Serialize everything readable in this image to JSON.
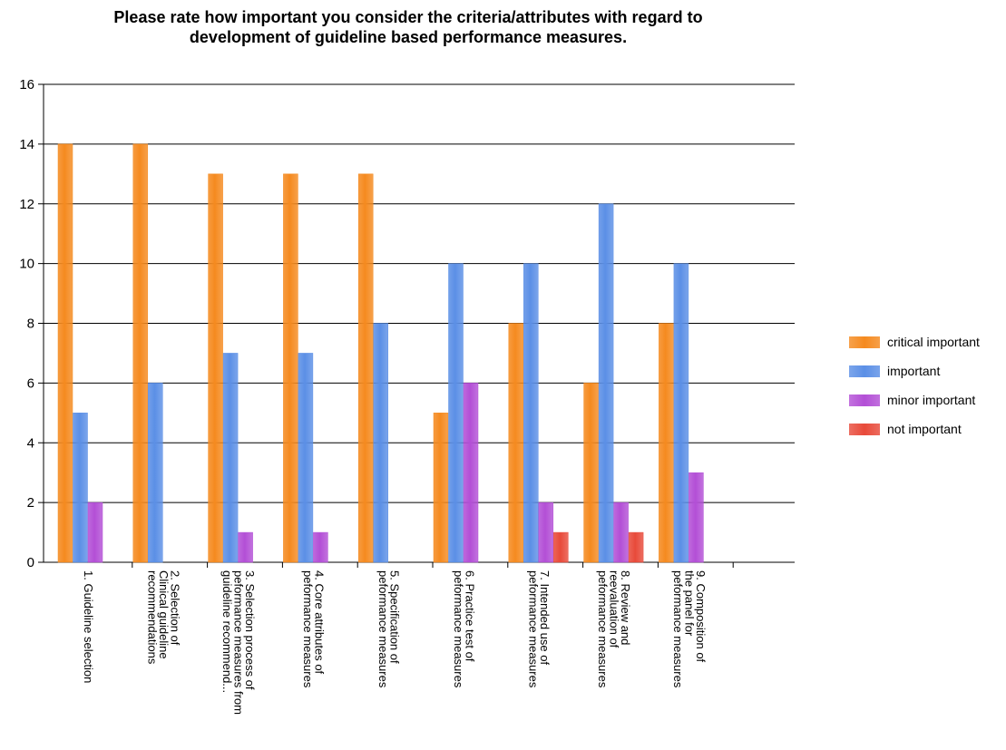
{
  "chart_data": {
    "type": "bar",
    "title_lines": [
      "Please rate how important you consider the criteria/attributes with regard to",
      "development of guideline based performance measures."
    ],
    "categories": [
      [
        "1. Guideline selection"
      ],
      [
        "2. Selection of",
        "Clinical guideline",
        "recommendations"
      ],
      [
        "3. Selection process of",
        "peformance measures from",
        "guideline recommend..."
      ],
      [
        "4. Core attributes of",
        "peformance measures"
      ],
      [
        "5. Specification of",
        "peformance measures"
      ],
      [
        "6. Practice test of",
        "peformance measures"
      ],
      [
        "7. Intended use of",
        "peformance measures"
      ],
      [
        "8. Review and",
        "reevaluation of",
        "peformance measures"
      ],
      [
        "9. Composition of",
        "the panel for",
        "peformance measures"
      ]
    ],
    "series": [
      {
        "name": "critical important",
        "color": "#f58a1f",
        "values": [
          14,
          14,
          13,
          13,
          13,
          5,
          8,
          6,
          8
        ]
      },
      {
        "name": "important",
        "color": "#5b8fe6",
        "values": [
          5,
          6,
          7,
          7,
          8,
          10,
          10,
          12,
          10
        ]
      },
      {
        "name": "minor important",
        "color": "#b34fd6",
        "values": [
          2,
          0,
          1,
          1,
          0,
          6,
          2,
          2,
          3
        ]
      },
      {
        "name": "not important",
        "color": "#e84a3a",
        "values": [
          0,
          0,
          0,
          0,
          0,
          0,
          1,
          1,
          0
        ]
      }
    ],
    "ylim": [
      0,
      16
    ],
    "yticks": [
      0,
      2,
      4,
      6,
      8,
      10,
      12,
      14,
      16
    ],
    "grid": true,
    "legend_position": "right"
  }
}
